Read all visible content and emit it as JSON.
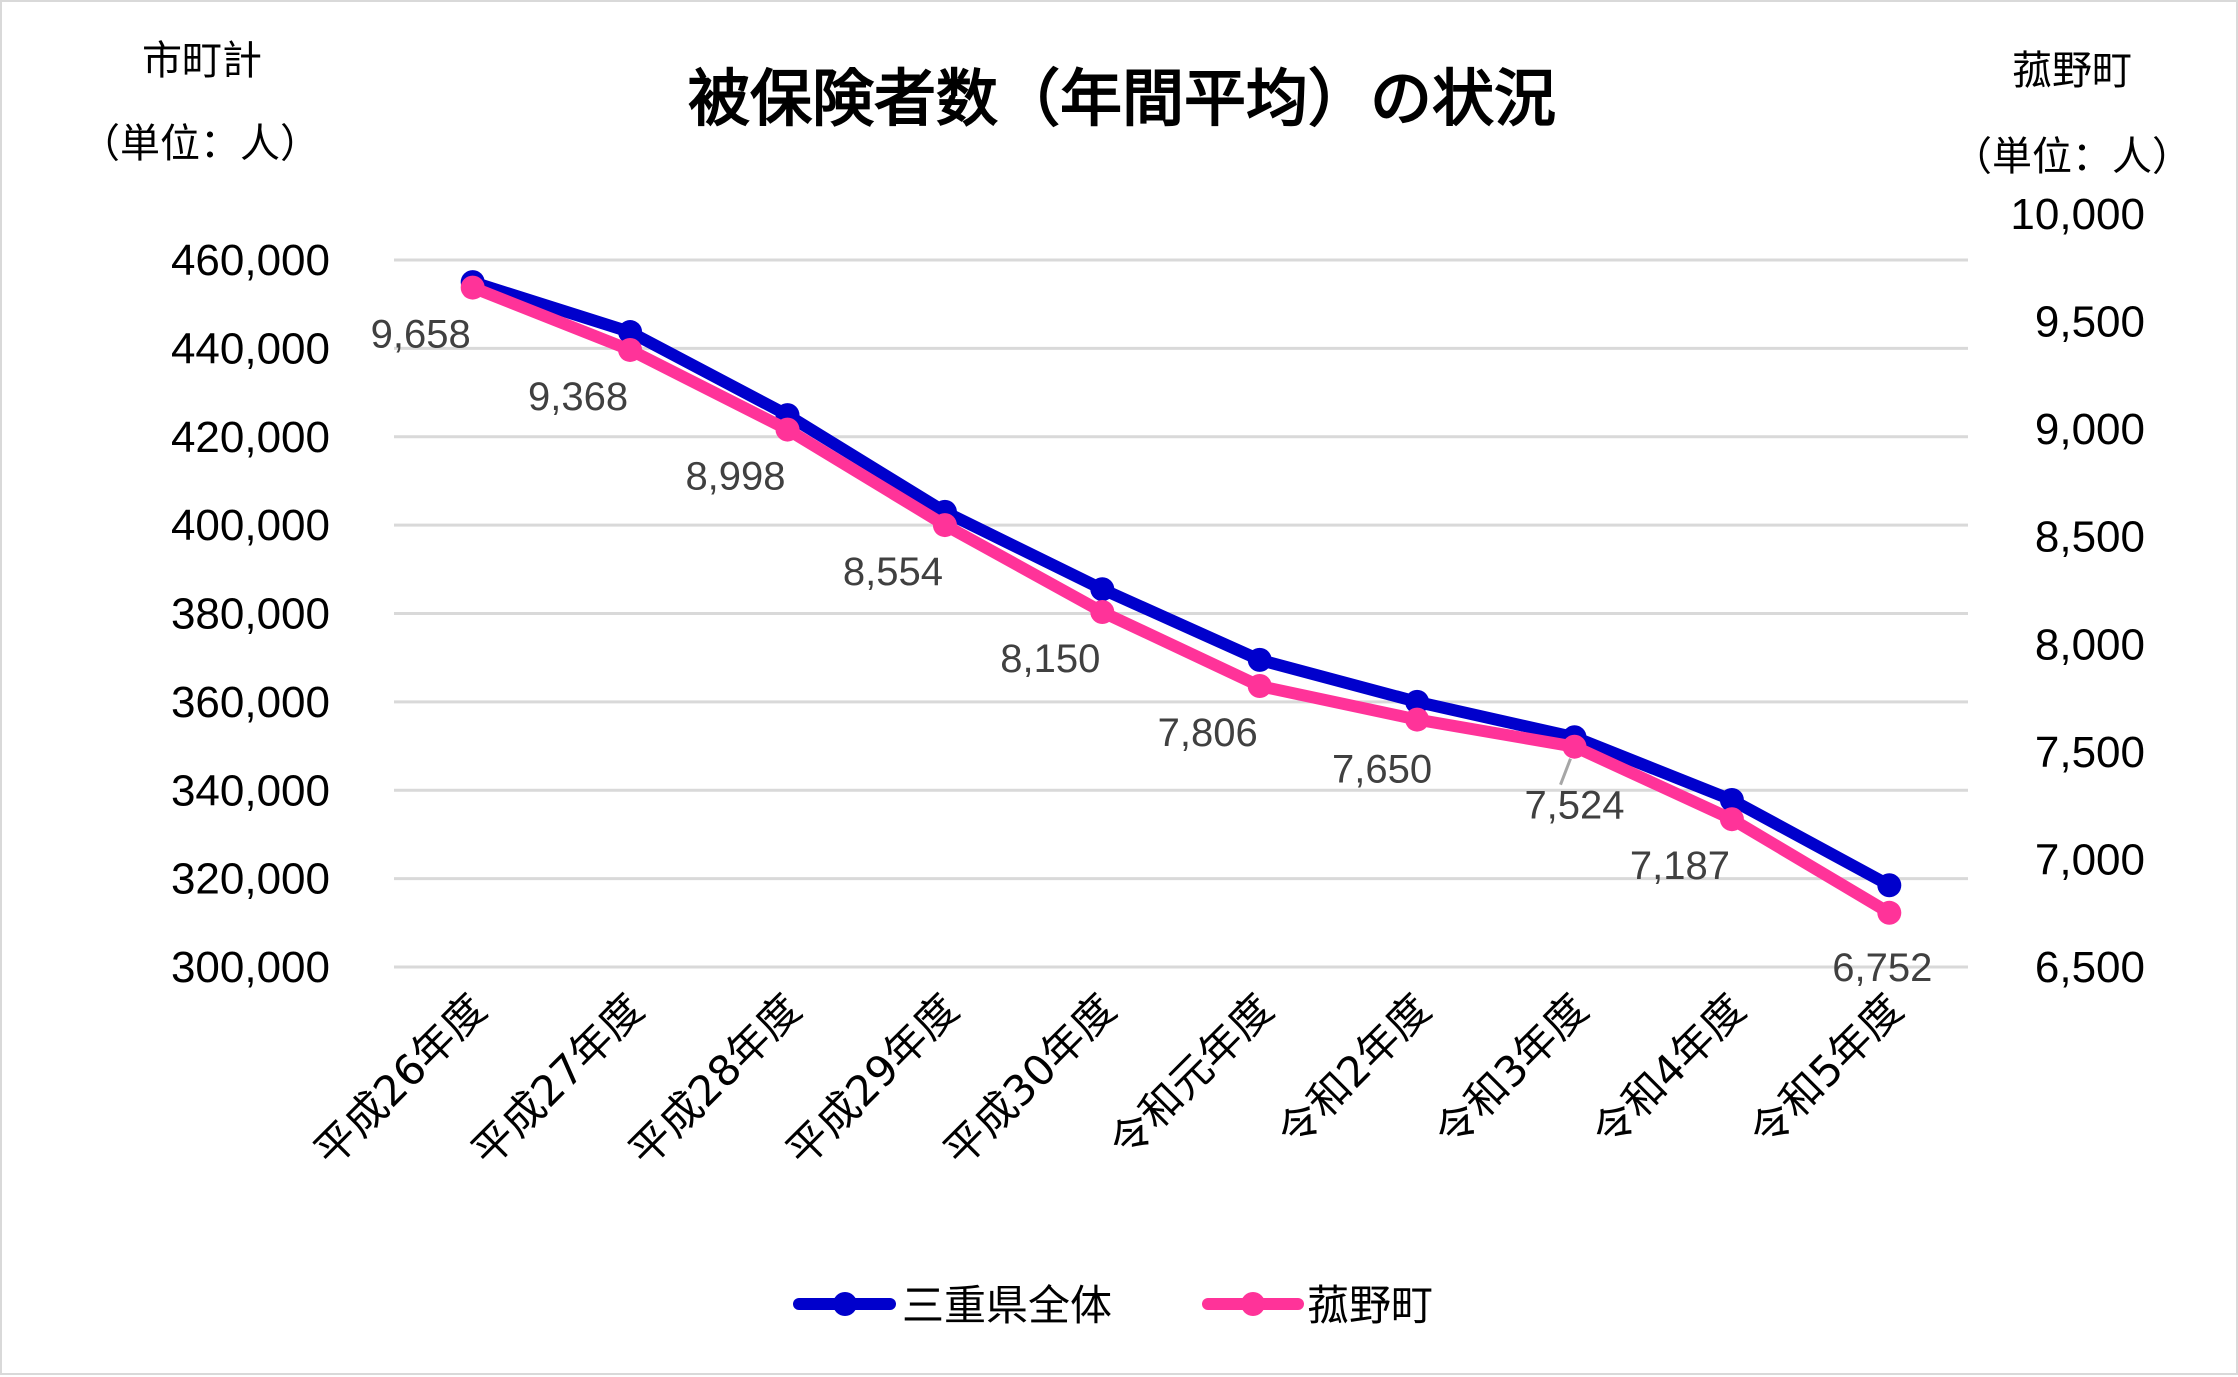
{
  "chart_data": {
    "type": "line",
    "title": "被保険者数（年間平均）の状況",
    "categories": [
      "平成26年度",
      "平成27年度",
      "平成28年度",
      "平成29年度",
      "平成30年度",
      "令和元年度",
      "令和2年度",
      "令和3年度",
      "令和4年度",
      "令和5年度"
    ],
    "series": [
      {
        "name": "三重県全体",
        "axis": "left",
        "color": "#0000CC",
        "values": [
          455000,
          443700,
          424900,
          403000,
          385500,
          369500,
          360000,
          352000,
          337800,
          318500
        ],
        "data_labels": false
      },
      {
        "name": "菰野町",
        "axis": "right",
        "color": "#FF3399",
        "values": [
          9658,
          9368,
          8998,
          8554,
          8150,
          7806,
          7650,
          7524,
          7187,
          6752
        ],
        "data_labels": true,
        "labels": [
          "9,658",
          "9,368",
          "8,998",
          "8,554",
          "8,150",
          "7,806",
          "7,650",
          "7,524",
          "7,187",
          "6,752"
        ]
      }
    ],
    "y_left": {
      "title_line1": "市町計",
      "title_line2": "（単位：人）",
      "ylim": [
        300000,
        460000
      ],
      "ticks": [
        "460,000",
        "440,000",
        "420,000",
        "400,000",
        "380,000",
        "360,000",
        "340,000",
        "320,000",
        "300,000"
      ]
    },
    "y_right": {
      "title_line1": "菰野町",
      "title_line2": "（単位：人）",
      "ylim": [
        6500,
        10000
      ],
      "ticks": [
        "10,000",
        "9,500",
        "9,000",
        "8,500",
        "8,000",
        "7,500",
        "7,000",
        "6,500"
      ]
    },
    "xlabel": "",
    "grid": true,
    "legend_position": "bottom"
  },
  "legend": {
    "items": [
      {
        "label": "三重県全体",
        "color": "#0000CC"
      },
      {
        "label": "菰野町",
        "color": "#FF3399"
      }
    ]
  }
}
